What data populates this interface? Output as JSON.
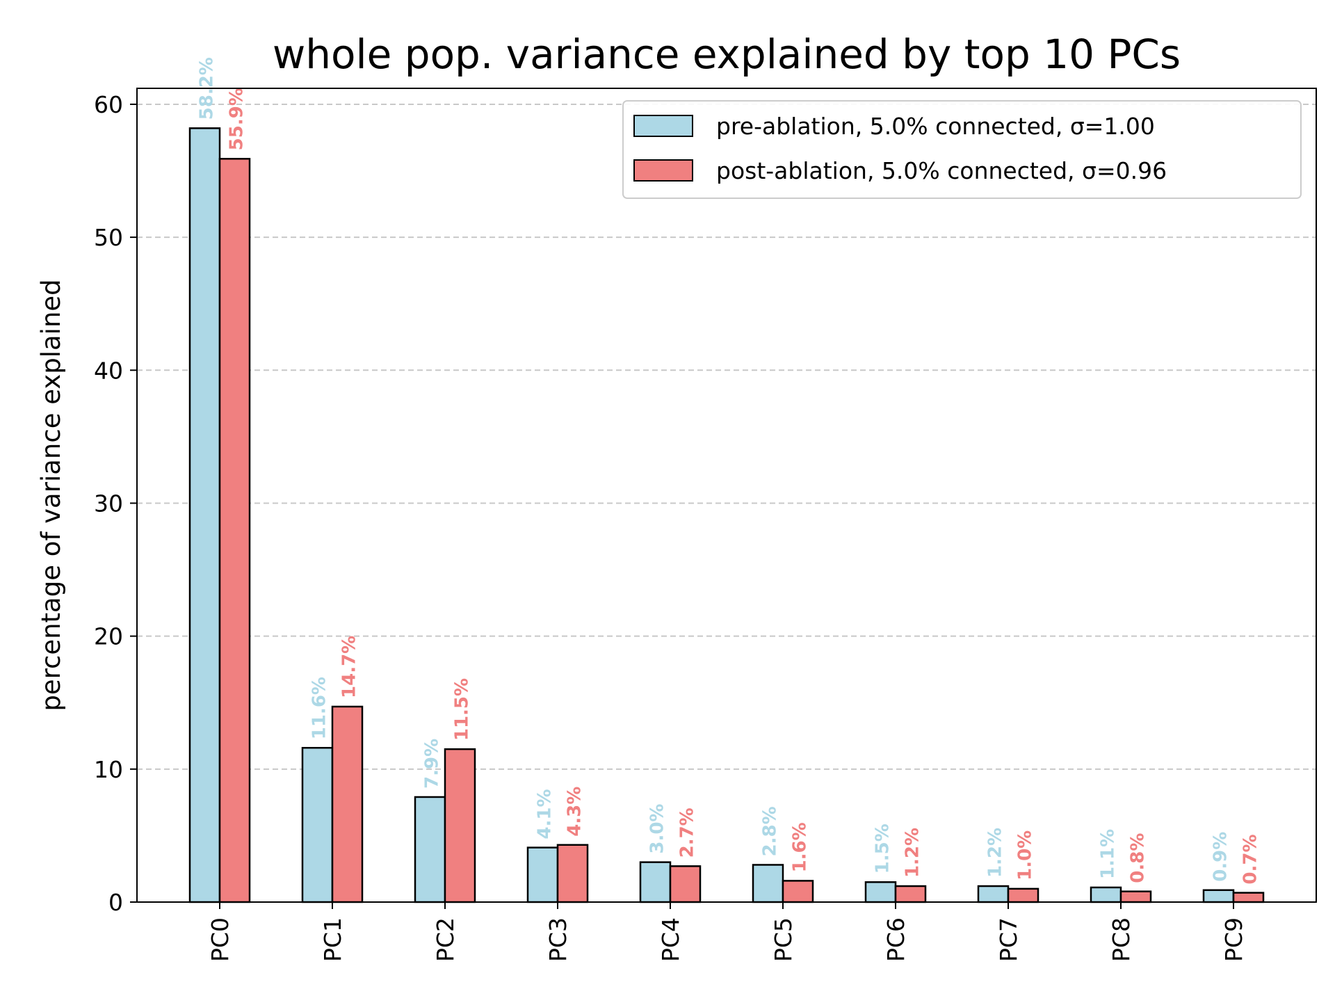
{
  "chart_data": {
    "type": "bar",
    "title": "whole pop. variance explained by top 10 PCs",
    "xlabel": "",
    "ylabel": "percentage of variance explained",
    "categories": [
      "PC0",
      "PC1",
      "PC2",
      "PC3",
      "PC4",
      "PC5",
      "PC6",
      "PC7",
      "PC8",
      "PC9"
    ],
    "ylim": [
      0,
      61.2
    ],
    "yticks": [
      0,
      10,
      20,
      30,
      40,
      50,
      60
    ],
    "grid": "y, dashed",
    "legend_position": "top-right",
    "series": [
      {
        "name": "pre-ablation, 5.0% connected, σ=1.00",
        "color": "#add8e6",
        "values": [
          58.2,
          11.6,
          7.9,
          4.1,
          3.0,
          2.8,
          1.5,
          1.2,
          1.1,
          0.9
        ],
        "labels": [
          "58.2%",
          "11.6%",
          "7.9%",
          "4.1%",
          "3.0%",
          "2.8%",
          "1.5%",
          "1.2%",
          "1.1%",
          "0.9%"
        ]
      },
      {
        "name": "post-ablation, 5.0% connected, σ=0.96",
        "color": "#f08080",
        "values": [
          55.9,
          14.7,
          11.5,
          4.3,
          2.7,
          1.6,
          1.2,
          1.0,
          0.8,
          0.7
        ],
        "labels": [
          "55.9%",
          "14.7%",
          "11.5%",
          "4.3%",
          "2.7%",
          "1.6%",
          "1.2%",
          "1.0%",
          "0.8%",
          "0.7%"
        ]
      }
    ]
  }
}
